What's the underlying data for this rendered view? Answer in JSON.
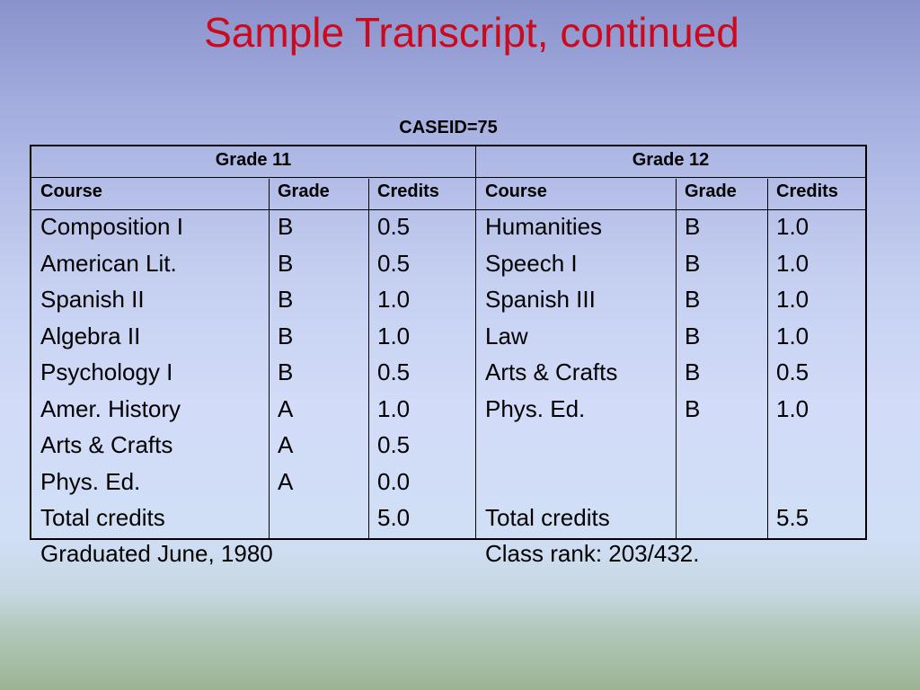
{
  "title": "Sample Transcript, continued",
  "caseid": "CASEID=75",
  "grade11": {
    "label": "Grade 11",
    "headers": [
      "Course",
      "Grade",
      "Credits"
    ],
    "courses": [
      "Composition I",
      "American Lit.",
      "Spanish II",
      "Algebra II",
      "Psychology I",
      "Amer. History",
      "Arts & Crafts",
      "Phys. Ed.",
      "Total credits"
    ],
    "grades": [
      "B",
      "B",
      "B",
      "B",
      "B",
      "A",
      "A",
      "A",
      ""
    ],
    "credits": [
      "0.5",
      "0.5",
      "1.0",
      "1.0",
      "0.5",
      "1.0",
      "0.5",
      "0.0",
      "5.0"
    ]
  },
  "grade12": {
    "label": "Grade 12",
    "headers": [
      "Course",
      "Grade",
      "Credits"
    ],
    "courses": [
      "Humanities",
      "Speech I",
      "Spanish III",
      "Law",
      "Arts & Crafts",
      "Phys. Ed.",
      "",
      "",
      "Total credits"
    ],
    "grades": [
      "B",
      "B",
      "B",
      "B",
      "B",
      "B",
      "",
      "",
      ""
    ],
    "credits": [
      "1.0",
      "1.0",
      "1.0",
      "1.0",
      "0.5",
      "1.0",
      "",
      "",
      "5.5"
    ]
  },
  "footer": {
    "graduated": "Graduated June, 1980",
    "class_rank": "Class rank:  203/432."
  }
}
